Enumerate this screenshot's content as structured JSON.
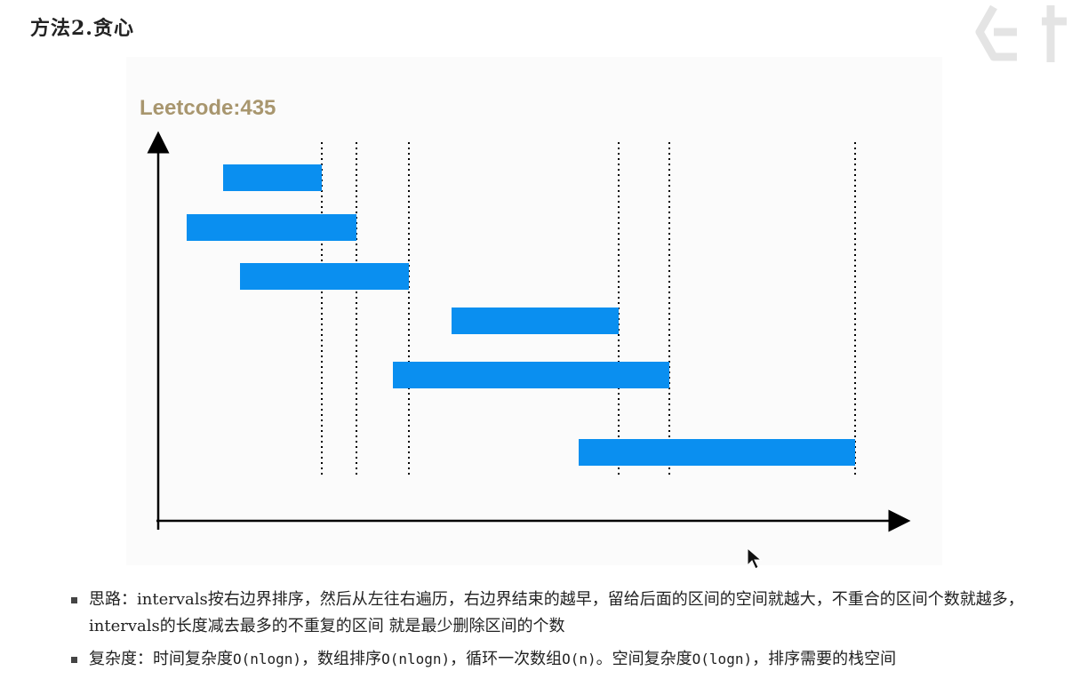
{
  "heading": "方法2.贪心",
  "figure": {
    "title": "Leetcode:435",
    "bar_color": "#0a8ff0",
    "title_color": "#a8966e"
  },
  "bullets": [
    {
      "text": "思路：intervals按右边界排序，然后从左往右遍历，右边界结束的越早，留给后面的区间的空间就越大，不重合的区间个数就越多，intervals的长度减去最多的不重复的区间 就是最少删除区间的个数"
    },
    {
      "prefix": "复杂度：时间复杂度",
      "parts": [
        {
          "text": "O(nlogn)",
          "mono": true
        },
        {
          "text": "，数组排序",
          "mono": false
        },
        {
          "text": "O(nlogn)",
          "mono": true
        },
        {
          "text": "，循环一次数组",
          "mono": false
        },
        {
          "text": "O(n)",
          "mono": true
        },
        {
          "text": "。空间复杂度",
          "mono": false
        },
        {
          "text": "O(logn)",
          "mono": true
        },
        {
          "text": "，排序需要的栈空间",
          "mono": false
        }
      ]
    }
  ]
}
